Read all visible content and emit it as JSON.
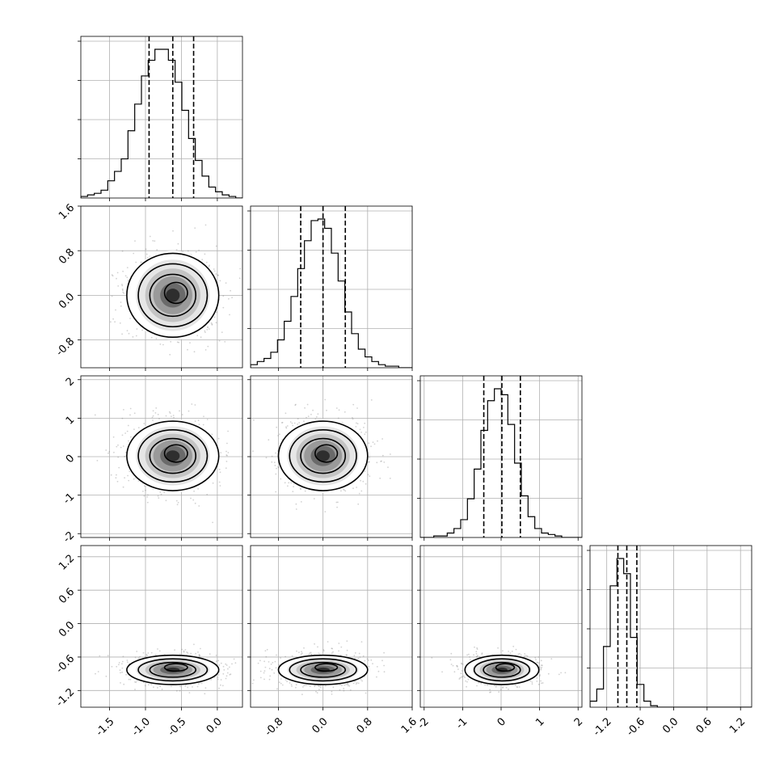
{
  "chart_data": {
    "type": "corner",
    "parameters": [
      {
        "range": [
          -1.9,
          0.35
        ],
        "ticks": [
          "-1.5",
          "-1.0",
          "-0.5",
          "0.0"
        ],
        "tick_values": [
          -1.5,
          -1.0,
          -0.5,
          0.0
        ],
        "mean": -0.62,
        "std": 0.32,
        "quantiles": [
          -0.95,
          -0.62,
          -0.33
        ]
      },
      {
        "range": [
          -1.3,
          1.6
        ],
        "ticks": [
          "-0.8",
          "0.0",
          "0.8",
          "1.6"
        ],
        "tick_values": [
          -0.8,
          0.0,
          0.8,
          1.6
        ],
        "mean": 0.0,
        "std": 0.4,
        "quantiles": [
          -0.4,
          0.0,
          0.4
        ]
      },
      {
        "range": [
          -2.1,
          2.1
        ],
        "ticks": [
          "-2",
          "-1",
          "0",
          "1",
          "2"
        ],
        "tick_values": [
          -2,
          -1,
          0,
          1,
          2
        ],
        "mean": 0.02,
        "std": 0.48,
        "quantiles": [
          -0.45,
          0.02,
          0.5
        ]
      },
      {
        "range": [
          -1.5,
          1.4
        ],
        "ticks": [
          "-1.2",
          "-0.6",
          "0.0",
          "0.6",
          "1.2"
        ],
        "tick_values": [
          -1.2,
          -0.6,
          0.0,
          0.6,
          1.2
        ],
        "mean": -0.83,
        "std": 0.14,
        "quantiles": [
          -1.0,
          -0.84,
          -0.66
        ]
      }
    ],
    "histograms": [
      {
        "bins": 24,
        "counts": [
          1,
          2,
          3,
          5,
          11,
          17,
          25,
          43,
          60,
          78,
          88,
          95,
          95,
          88,
          74,
          56,
          38,
          24,
          14,
          7,
          4,
          2,
          1,
          0
        ]
      },
      {
        "bins": 24,
        "counts": [
          2,
          4,
          6,
          10,
          18,
          30,
          46,
          64,
          82,
          95,
          96,
          90,
          74,
          56,
          36,
          22,
          12,
          7,
          4,
          2,
          1,
          1,
          0,
          0
        ]
      },
      {
        "bins": 24,
        "counts": [
          0,
          0,
          1,
          1,
          3,
          6,
          12,
          26,
          46,
          72,
          92,
          100,
          96,
          76,
          50,
          28,
          14,
          6,
          3,
          2,
          1,
          0,
          0,
          0
        ]
      },
      {
        "bins": 24,
        "counts": [
          4,
          12,
          40,
          80,
          98,
          88,
          46,
          15,
          4,
          1,
          0,
          0,
          0,
          0,
          0,
          0,
          0,
          0,
          0,
          0,
          0,
          0,
          0,
          0
        ]
      }
    ],
    "contour_levels_sigma": [
      0.5,
      1.0,
      1.5,
      2.0
    ],
    "grid": true,
    "title": "",
    "xlabel": "",
    "ylabel": ""
  }
}
